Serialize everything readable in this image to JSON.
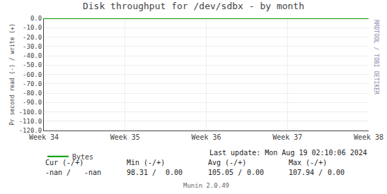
{
  "chart_data": {
    "type": "line",
    "title": "Disk throughput for /dev/sdbx - by month",
    "ylabel": "Pr second read (-) / write (+)",
    "categories": [
      "Week 34",
      "Week 35",
      "Week 36",
      "Week 37",
      "Week 38"
    ],
    "series": [
      {
        "name": "Bytes",
        "color": "#009900",
        "values": [
          0,
          0,
          0,
          0,
          0
        ]
      }
    ],
    "ylim": [
      -120,
      0
    ],
    "yticks": [
      {
        "value": 0,
        "label": "0.0"
      },
      {
        "value": -10,
        "label": "-10.0"
      },
      {
        "value": -20,
        "label": "-20.0"
      },
      {
        "value": -30,
        "label": "-30.0"
      },
      {
        "value": -40,
        "label": "-40.0"
      },
      {
        "value": -50,
        "label": "-50.0"
      },
      {
        "value": -60,
        "label": "-60.0"
      },
      {
        "value": -70,
        "label": "-70.0"
      },
      {
        "value": -80,
        "label": "-80.0"
      },
      {
        "value": -90,
        "label": "-90.0"
      },
      {
        "value": -100,
        "label": "-100.0"
      },
      {
        "value": -110,
        "label": "-110.0"
      },
      {
        "value": -120,
        "label": "-120.0"
      }
    ],
    "grid": true,
    "legend": "bottom",
    "annotations": [
      "Cur (-/+)",
      "-nan /",
      "-nan",
      "Min (-/+)",
      "98.31 /",
      "0.00",
      "Avg (-/+)",
      "105.05 /",
      "0.00",
      "Max (-/+)",
      "107.94 /",
      "0.00",
      "Last update: Mon Aug 19 02:10:06 2024",
      "Munin 2.0.49",
      "RRDTOOL / TOBI OETIKER"
    ]
  }
}
